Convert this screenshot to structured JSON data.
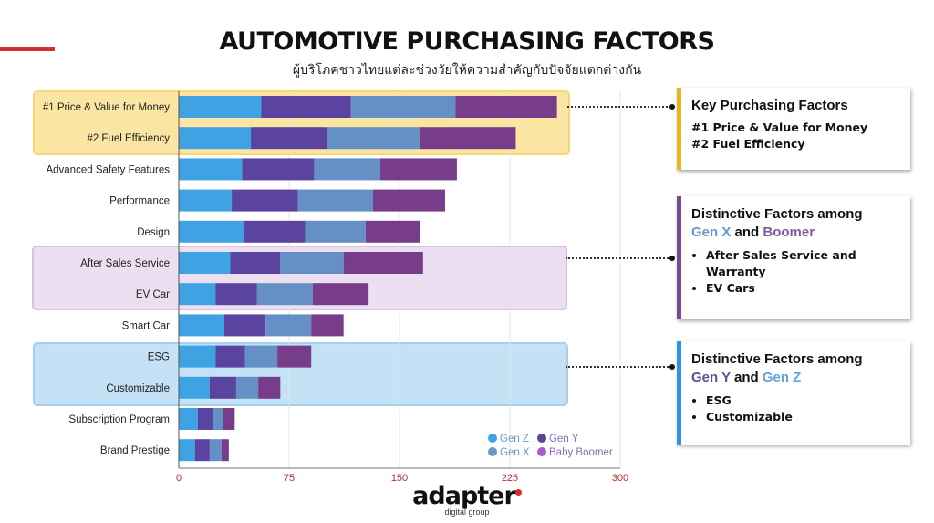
{
  "header": {
    "title": "AUTOMOTIVE PURCHASING FACTORS",
    "subtitle": "ผู้บริโภคชาวไทยแต่ละช่วงวัยให้ความสำคัญกับปัจจัยแตกต่างกัน"
  },
  "chart_data": {
    "type": "bar",
    "orientation": "horizontal",
    "stacked": true,
    "categories": [
      "#1 Price & Value for Money",
      "#2 Fuel Efficiency",
      "Advanced Safety Features",
      "Performance",
      "Design",
      "After Sales Service",
      "EV Car",
      "Smart Car",
      "ESG",
      "Customizable",
      "Subscription Program",
      "Brand Prestige"
    ],
    "series": [
      {
        "name": "Gen Z",
        "color": "#3fa3e3",
        "values": [
          56,
          49,
          43,
          36,
          44,
          35,
          25,
          31,
          25,
          21,
          13,
          11
        ]
      },
      {
        "name": "Gen Y",
        "color": "#5a44a0",
        "values": [
          61,
          52,
          49,
          45,
          42,
          34,
          28,
          28,
          20,
          18,
          10,
          10
        ]
      },
      {
        "name": "Gen X",
        "color": "#6590c6",
        "values": [
          71,
          63,
          45,
          51,
          41,
          43,
          38,
          31,
          22,
          15,
          7,
          8
        ]
      },
      {
        "name": "Baby Boomer",
        "color": "#773d8a",
        "values": [
          69,
          65,
          52,
          49,
          37,
          54,
          38,
          22,
          23,
          15,
          8,
          5
        ]
      }
    ],
    "xlim": [
      0,
      300
    ],
    "xticks": [
      "0",
      "75",
      "150",
      "225",
      "300"
    ],
    "legend_position": "bottom-right",
    "grid": true
  },
  "panels": [
    {
      "title": "Key Purchasing Factors",
      "lines": [
        "#1 Price & Value for Money",
        "#2 Fuel Efficiency"
      ],
      "accent": "#e8b320"
    },
    {
      "title": "Distinctive Factors among",
      "hl1": "Gen X",
      "and": " and ",
      "hl2": "Boomer",
      "items": [
        "After Sales Service and Warranty",
        "EV Cars"
      ],
      "accent": "#7a4a91"
    },
    {
      "title": "Distinctive Factors among",
      "hl1": "Gen Y",
      "and": " and ",
      "hl2": "Gen Z",
      "items": [
        "ESG",
        "Customizable"
      ],
      "accent": "#2e93e0"
    }
  ],
  "logo": {
    "name": "adapter",
    "sub": "digital group"
  }
}
